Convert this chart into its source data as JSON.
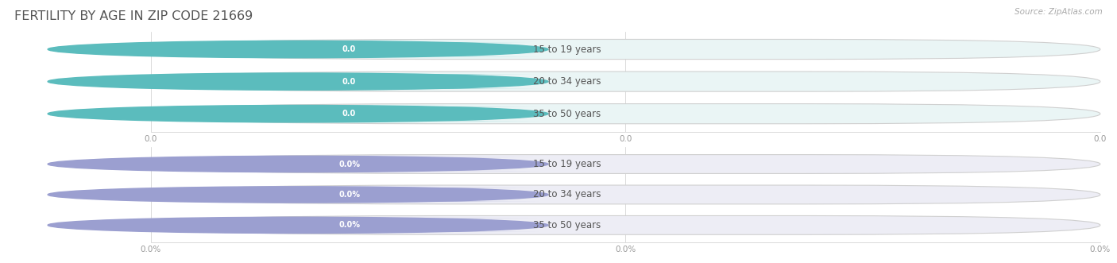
{
  "title": "FERTILITY BY AGE IN ZIP CODE 21669",
  "source_text": "Source: ZipAtlas.com",
  "background_color": "#ffffff",
  "title_fontsize": 11.5,
  "title_color": "#555555",
  "group1_categories": [
    "15 to 19 years",
    "20 to 34 years",
    "35 to 50 years"
  ],
  "group1_values": [
    0.0,
    0.0,
    0.0
  ],
  "group1_value_labels": [
    "0.0",
    "0.0",
    "0.0"
  ],
  "group1_bar_bg": "#eaf5f5",
  "group1_circle_color": "#5bbcbd",
  "group1_badge_color": "#5bbcbd",
  "group1_badge_text_color": "#ffffff",
  "group1_label_color": "#555555",
  "group2_categories": [
    "15 to 19 years",
    "20 to 34 years",
    "35 to 50 years"
  ],
  "group2_values": [
    0.0,
    0.0,
    0.0
  ],
  "group2_value_labels": [
    "0.0%",
    "0.0%",
    "0.0%"
  ],
  "group2_bar_bg": "#ededf5",
  "group2_circle_color": "#9b9fd0",
  "group2_badge_color": "#9b9fd0",
  "group2_badge_text_color": "#ffffff",
  "group2_label_color": "#555555",
  "tick_color": "#aaaaaa",
  "tick_label_color": "#999999",
  "figsize": [
    14.06,
    3.31
  ],
  "dpi": 100
}
